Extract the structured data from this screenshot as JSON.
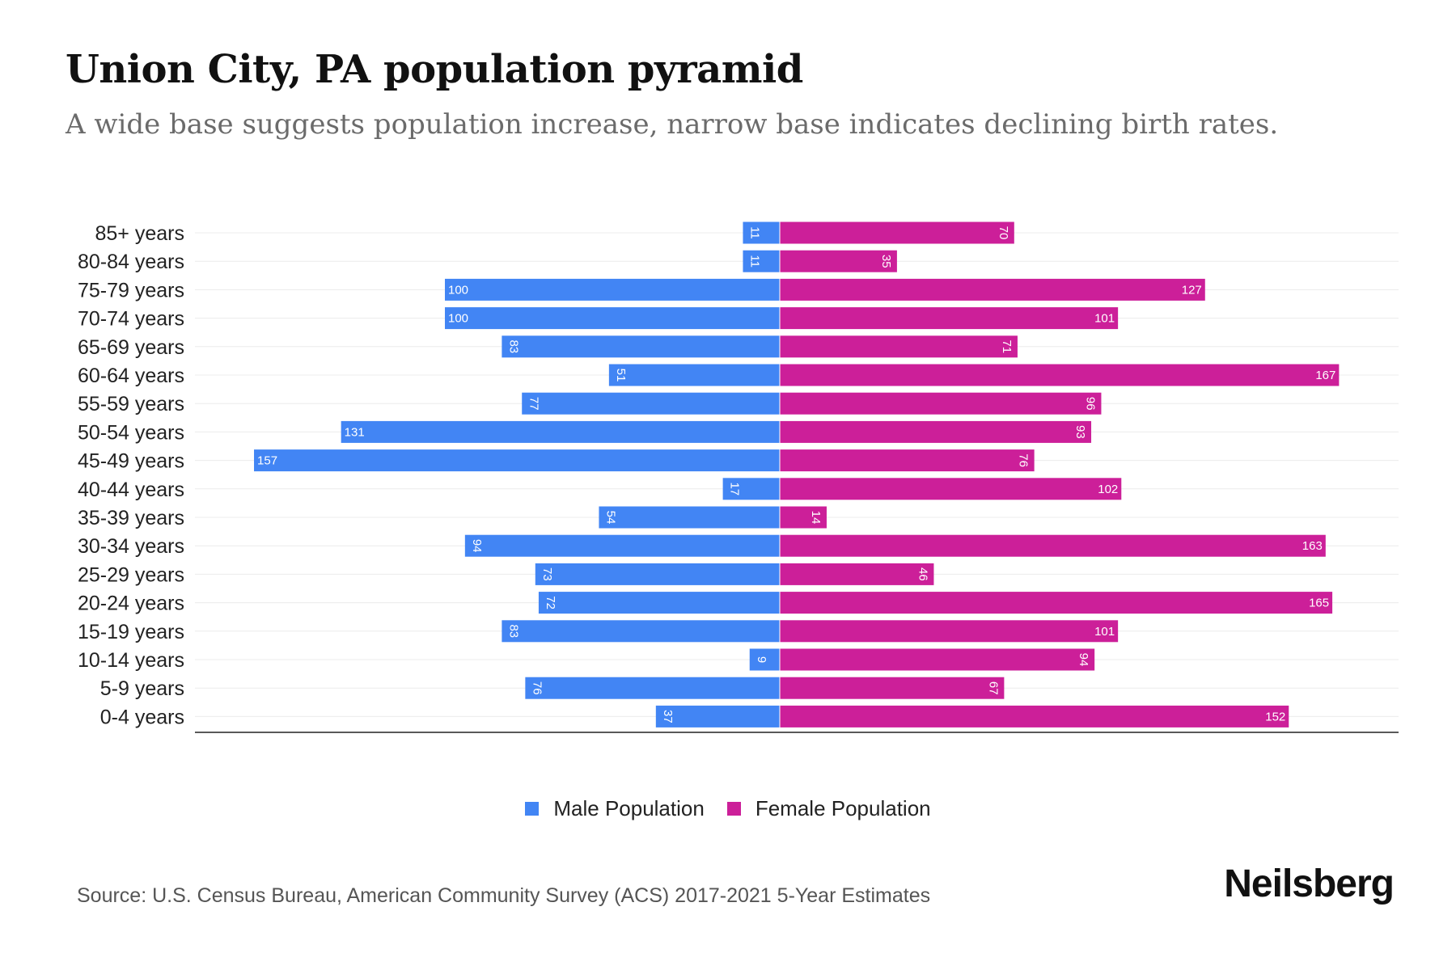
{
  "chart_data": {
    "type": "bar",
    "orientation": "horizontal-pyramid",
    "title": "Union City, PA population pyramid",
    "subtitle": "A wide base suggests population increase, narrow base indicates declining birth rates.",
    "categories": [
      "85+ years",
      "80-84 years",
      "75-79 years",
      "70-74 years",
      "65-69 years",
      "60-64 years",
      "55-59 years",
      "50-54 years",
      "45-49 years",
      "40-44 years",
      "35-39 years",
      "30-34 years",
      "25-29 years",
      "20-24 years",
      "15-19 years",
      "10-14 years",
      "5-9 years",
      "0-4 years"
    ],
    "series": [
      {
        "name": "Male Population",
        "color": "#4285f4",
        "values": [
          11,
          11,
          100,
          100,
          83,
          51,
          77,
          131,
          157,
          17,
          54,
          94,
          73,
          72,
          83,
          9,
          76,
          37
        ]
      },
      {
        "name": "Female Population",
        "color": "#cc1f99",
        "values": [
          70,
          35,
          127,
          101,
          71,
          167,
          96,
          93,
          76,
          102,
          14,
          163,
          46,
          165,
          101,
          94,
          67,
          152
        ]
      }
    ],
    "xlim": [
      -175,
      185
    ],
    "legend_position": "bottom-center",
    "grid": true
  },
  "source": "Source: U.S. Census Bureau, American Community Survey (ACS) 2017-2021 5-Year Estimates",
  "brand": "Neilsberg"
}
